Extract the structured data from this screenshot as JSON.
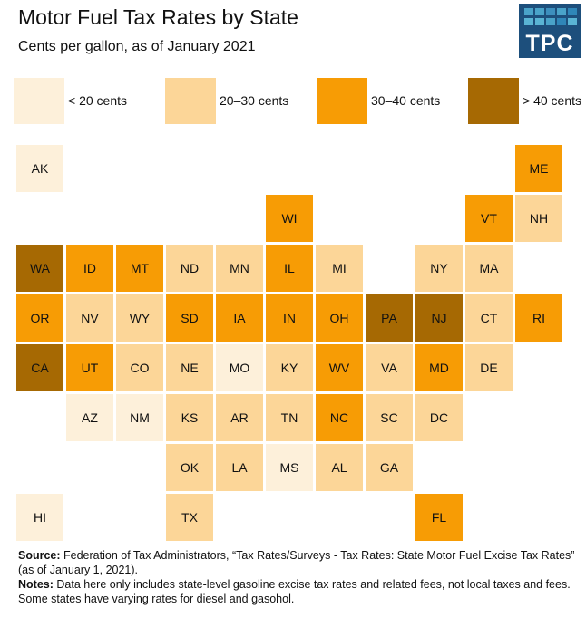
{
  "title": "Motor Fuel Tax Rates by State",
  "subtitle": "Cents per gallon, as of January 2021",
  "logo": "TPC",
  "chart_data": {
    "type": "tile-map",
    "title": "Motor Fuel Tax Rates by State",
    "subtitle": "Cents per gallon, as of January 2021",
    "legend": [
      {
        "label": "< 20 cents",
        "color": "#fdf0da"
      },
      {
        "label": "20–30 cents",
        "color": "#fcd698"
      },
      {
        "label": "30–40 cents",
        "color": "#f79c05"
      },
      {
        "label": "> 40 cents",
        "color": "#a66903"
      }
    ],
    "tiles": [
      {
        "state": "AK",
        "row": 0,
        "col": 0,
        "cat": 0
      },
      {
        "state": "ME",
        "row": 0,
        "col": 10,
        "cat": 2
      },
      {
        "state": "WI",
        "row": 1,
        "col": 5,
        "cat": 2
      },
      {
        "state": "VT",
        "row": 1,
        "col": 9,
        "cat": 2
      },
      {
        "state": "NH",
        "row": 1,
        "col": 10,
        "cat": 1
      },
      {
        "state": "WA",
        "row": 2,
        "col": 0,
        "cat": 3
      },
      {
        "state": "ID",
        "row": 2,
        "col": 1,
        "cat": 2
      },
      {
        "state": "MT",
        "row": 2,
        "col": 2,
        "cat": 2
      },
      {
        "state": "ND",
        "row": 2,
        "col": 3,
        "cat": 1
      },
      {
        "state": "MN",
        "row": 2,
        "col": 4,
        "cat": 1
      },
      {
        "state": "IL",
        "row": 2,
        "col": 5,
        "cat": 2
      },
      {
        "state": "MI",
        "row": 2,
        "col": 6,
        "cat": 1
      },
      {
        "state": "NY",
        "row": 2,
        "col": 8,
        "cat": 1
      },
      {
        "state": "MA",
        "row": 2,
        "col": 9,
        "cat": 1
      },
      {
        "state": "OR",
        "row": 3,
        "col": 0,
        "cat": 2
      },
      {
        "state": "NV",
        "row": 3,
        "col": 1,
        "cat": 1
      },
      {
        "state": "WY",
        "row": 3,
        "col": 2,
        "cat": 1
      },
      {
        "state": "SD",
        "row": 3,
        "col": 3,
        "cat": 2
      },
      {
        "state": "IA",
        "row": 3,
        "col": 4,
        "cat": 2
      },
      {
        "state": "IN",
        "row": 3,
        "col": 5,
        "cat": 2
      },
      {
        "state": "OH",
        "row": 3,
        "col": 6,
        "cat": 2
      },
      {
        "state": "PA",
        "row": 3,
        "col": 7,
        "cat": 3
      },
      {
        "state": "NJ",
        "row": 3,
        "col": 8,
        "cat": 3
      },
      {
        "state": "CT",
        "row": 3,
        "col": 9,
        "cat": 1
      },
      {
        "state": "RI",
        "row": 3,
        "col": 10,
        "cat": 2
      },
      {
        "state": "CA",
        "row": 4,
        "col": 0,
        "cat": 3
      },
      {
        "state": "UT",
        "row": 4,
        "col": 1,
        "cat": 2
      },
      {
        "state": "CO",
        "row": 4,
        "col": 2,
        "cat": 1
      },
      {
        "state": "NE",
        "row": 4,
        "col": 3,
        "cat": 1
      },
      {
        "state": "MO",
        "row": 4,
        "col": 4,
        "cat": 0
      },
      {
        "state": "KY",
        "row": 4,
        "col": 5,
        "cat": 1
      },
      {
        "state": "WV",
        "row": 4,
        "col": 6,
        "cat": 2
      },
      {
        "state": "VA",
        "row": 4,
        "col": 7,
        "cat": 1
      },
      {
        "state": "MD",
        "row": 4,
        "col": 8,
        "cat": 2
      },
      {
        "state": "DE",
        "row": 4,
        "col": 9,
        "cat": 1
      },
      {
        "state": "AZ",
        "row": 5,
        "col": 1,
        "cat": 0
      },
      {
        "state": "NM",
        "row": 5,
        "col": 2,
        "cat": 0
      },
      {
        "state": "KS",
        "row": 5,
        "col": 3,
        "cat": 1
      },
      {
        "state": "AR",
        "row": 5,
        "col": 4,
        "cat": 1
      },
      {
        "state": "TN",
        "row": 5,
        "col": 5,
        "cat": 1
      },
      {
        "state": "NC",
        "row": 5,
        "col": 6,
        "cat": 2
      },
      {
        "state": "SC",
        "row": 5,
        "col": 7,
        "cat": 1
      },
      {
        "state": "DC",
        "row": 5,
        "col": 8,
        "cat": 1
      },
      {
        "state": "OK",
        "row": 6,
        "col": 3,
        "cat": 1
      },
      {
        "state": "LA",
        "row": 6,
        "col": 4,
        "cat": 1
      },
      {
        "state": "MS",
        "row": 6,
        "col": 5,
        "cat": 0
      },
      {
        "state": "AL",
        "row": 6,
        "col": 6,
        "cat": 1
      },
      {
        "state": "GA",
        "row": 6,
        "col": 7,
        "cat": 1
      },
      {
        "state": "HI",
        "row": 7,
        "col": 0,
        "cat": 0
      },
      {
        "state": "TX",
        "row": 7,
        "col": 3,
        "cat": 1
      },
      {
        "state": "FL",
        "row": 7,
        "col": 8,
        "cat": 2
      }
    ]
  },
  "footer": {
    "source_label": "Source:",
    "source_text": " Federation of Tax Administrators, “Tax Rates/Surveys - Tax Rates: State Motor Fuel Excise Tax Rates” (as of January 1, 2021).",
    "notes_label": "Notes:",
    "notes_text": " Data here only includes state-level gasoline excise tax rates and related fees, not local taxes and fees. Some states have varying rates for diesel and gasohol."
  }
}
